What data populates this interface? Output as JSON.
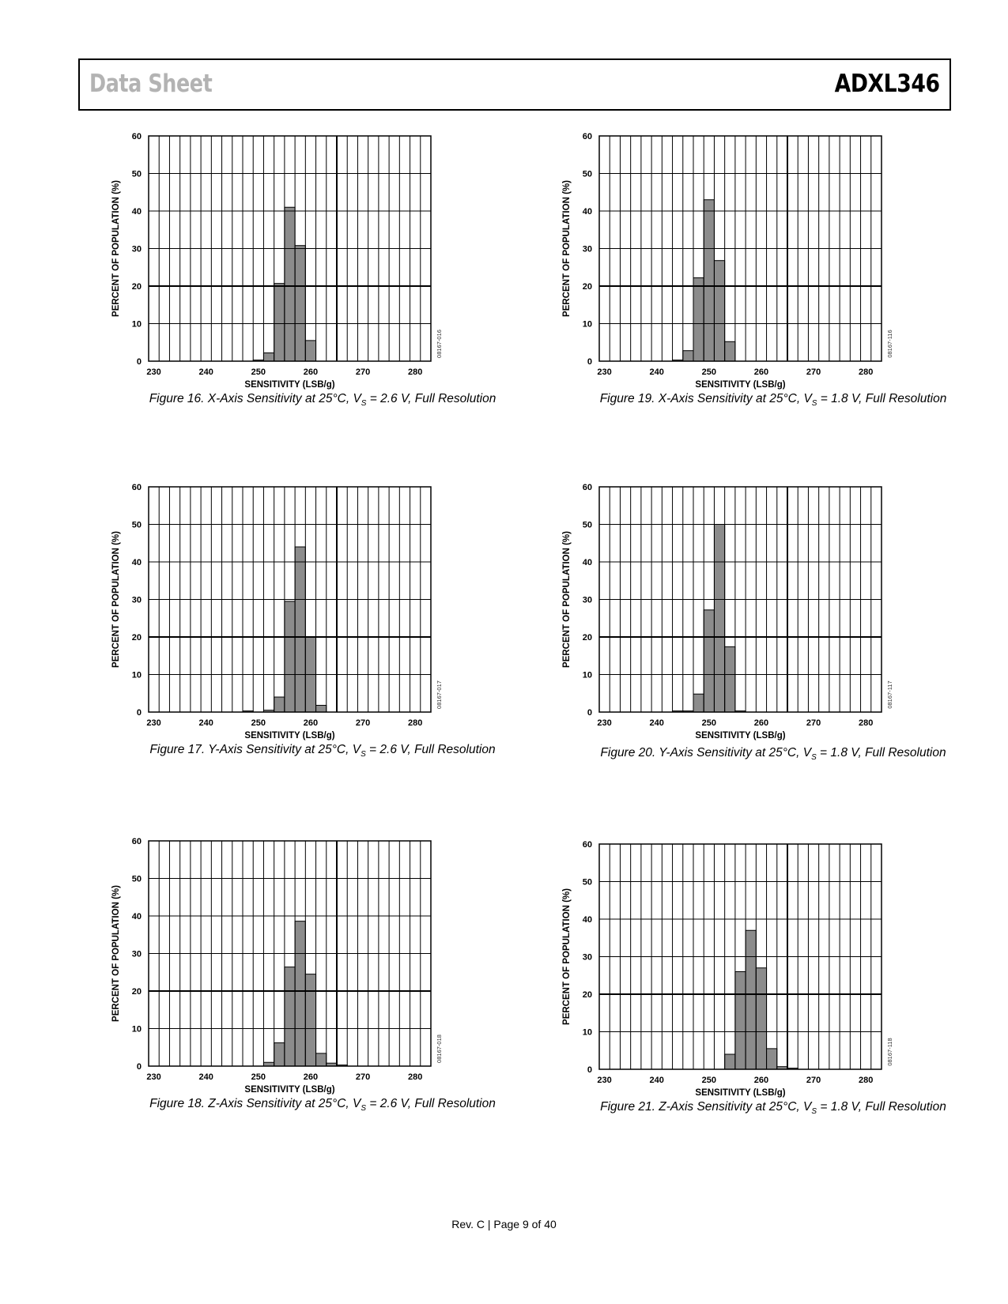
{
  "header": {
    "left": "Data Sheet",
    "right": "ADXL346"
  },
  "footer": "Rev. C | Page 9 of 40",
  "chart_data": [
    {
      "type": "bar",
      "figure": "Figure 16.",
      "caption_main": "X-Axis Sensitivity at 25°C, V",
      "caption_sub": "S",
      "caption_tail": " = 2.6 V, Full Resolution",
      "code": "08167-016",
      "xlabel": "SENSITIVITY (LSB/g)",
      "ylabel": "PERCENT OF POPULATION (%)",
      "xlim": [
        229,
        283
      ],
      "ylim": [
        0,
        60
      ],
      "xticks": [
        230,
        240,
        250,
        260,
        270,
        280
      ],
      "yticks": [
        0,
        10,
        20,
        30,
        40,
        50,
        60
      ],
      "bin_width": 2,
      "bins": [
        249,
        251,
        253,
        255,
        257,
        259
      ],
      "values": [
        0.3,
        2.2,
        20.7,
        41,
        30.8,
        5.5
      ]
    },
    {
      "type": "bar",
      "figure": "Figure 17.",
      "caption_main": "Y-Axis Sensitivity at 25°C, V",
      "caption_sub": "S",
      "caption_tail": " = 2.6 V, Full Resolution",
      "code": "08167-017",
      "xlabel": "SENSITIVITY (LSB/g)",
      "ylabel": "PERCENT OF POPULATION (%)",
      "xlim": [
        229,
        283
      ],
      "ylim": [
        0,
        60
      ],
      "xticks": [
        230,
        240,
        250,
        260,
        270,
        280
      ],
      "yticks": [
        0,
        10,
        20,
        30,
        40,
        50,
        60
      ],
      "bin_width": 2,
      "bins": [
        247,
        249,
        251,
        253,
        255,
        257,
        259,
        261
      ],
      "values": [
        0.3,
        0,
        0.5,
        4,
        29.5,
        44,
        20,
        1.8
      ]
    },
    {
      "type": "bar",
      "figure": "Figure 18.",
      "caption_main": "Z-Axis Sensitivity at 25°C, V",
      "caption_sub": "S",
      "caption_tail": " = 2.6 V, Full Resolution",
      "code": "08167-018",
      "xlabel": "SENSITIVITY (LSB/g)",
      "ylabel": "PERCENT OF POPULATION (%)",
      "xlim": [
        229,
        283
      ],
      "ylim": [
        0,
        60
      ],
      "xticks": [
        230,
        240,
        250,
        260,
        270,
        280
      ],
      "yticks": [
        0,
        10,
        20,
        30,
        40,
        50,
        60
      ],
      "bin_width": 2,
      "bins": [
        251,
        253,
        255,
        257,
        259,
        261,
        263,
        265
      ],
      "values": [
        1,
        6.2,
        26.4,
        38.6,
        24.5,
        3.4,
        0.8,
        0.3
      ]
    },
    {
      "type": "bar",
      "figure": "Figure 19.",
      "caption_main": "X-Axis Sensitivity at 25°C, V",
      "caption_sub": "S",
      "caption_tail": " = 1.8 V, Full Resolution",
      "code": "08167-116",
      "xlabel": "SENSITIVITY (LSB/g)",
      "ylabel": "PERCENT OF POPULATION (%)",
      "xlim": [
        229,
        283
      ],
      "ylim": [
        0,
        60
      ],
      "xticks": [
        230,
        240,
        250,
        260,
        270,
        280
      ],
      "yticks": [
        0,
        10,
        20,
        30,
        40,
        50,
        60
      ],
      "bin_width": 2,
      "bins": [
        243,
        245,
        247,
        249,
        251,
        253
      ],
      "values": [
        0.3,
        2.8,
        22.2,
        43,
        26.8,
        5.2
      ]
    },
    {
      "type": "bar",
      "figure": "Figure 20.",
      "caption_main": "Y-Axis Sensitivity at 25°C, V",
      "caption_sub": "S",
      "caption_tail": " = 1.8 V, Full Resolution",
      "code": "08167-117",
      "xlabel": "SENSITIVITY (LSB/g)",
      "ylabel": "PERCENT OF POPULATION (%)",
      "xlim": [
        229,
        283
      ],
      "ylim": [
        0,
        60
      ],
      "xticks": [
        230,
        240,
        250,
        260,
        270,
        280
      ],
      "yticks": [
        0,
        10,
        20,
        30,
        40,
        50,
        60
      ],
      "bin_width": 2,
      "bins": [
        243,
        245,
        247,
        249,
        251,
        253,
        255
      ],
      "values": [
        0.3,
        0.3,
        4.8,
        27.2,
        50,
        17.4,
        0.3
      ]
    },
    {
      "type": "bar",
      "figure": "Figure 21.",
      "caption_main": "Z-Axis Sensitivity at 25°C, V",
      "caption_sub": "S",
      "caption_tail": " = 1.8 V, Full Resolution",
      "code": "08167-118",
      "xlabel": "SENSITIVITY (LSB/g)",
      "ylabel": "PERCENT OF POPULATION (%)",
      "xlim": [
        229,
        283
      ],
      "ylim": [
        0,
        60
      ],
      "xticks": [
        230,
        240,
        250,
        260,
        270,
        280
      ],
      "yticks": [
        0,
        10,
        20,
        30,
        40,
        50,
        60
      ],
      "bin_width": 2,
      "bins": [
        253,
        255,
        257,
        259,
        261,
        263,
        265
      ],
      "values": [
        4,
        26,
        37,
        27,
        5.5,
        0.7,
        0.3
      ]
    }
  ],
  "style": {
    "bar_fill": "#8c8c8c",
    "grid": "#000000"
  }
}
